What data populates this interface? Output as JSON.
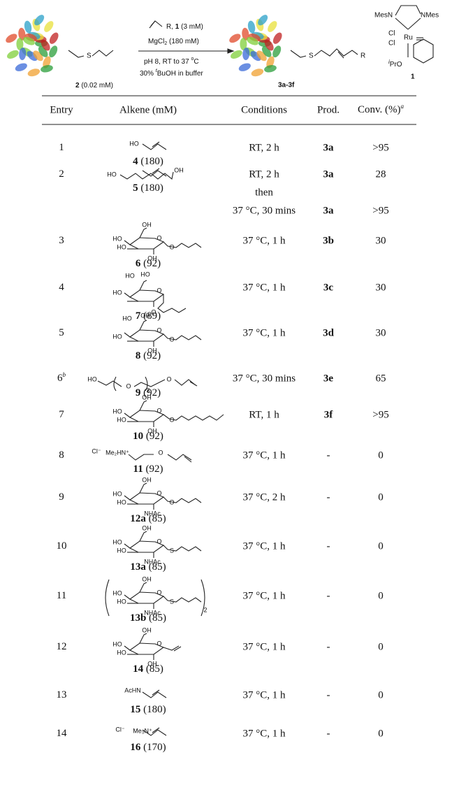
{
  "scheme": {
    "substrate_sulfur": "S",
    "substrate_label": "2",
    "substrate_conc": " (0.02 mM)",
    "reagent_r": "R, ",
    "reagent_cat": "1",
    "reagent_cat_conc": " (3 mM)",
    "mgcl": "MgCl",
    "mgcl_sub": "2",
    "mgcl_conc": " (180 mM)",
    "ph": "pH 8, RT to 37 ",
    "ph_deg": "o",
    "ph_c": "C",
    "tbuoh_pre": "30% ",
    "tbuoh_t": "t",
    "tbuoh": "BuOH in buffer",
    "product_sulfur": "S",
    "product_r": "R",
    "product_label": "3a-3f",
    "catalyst": {
      "mesn": "MesN",
      "nmes": "NMes",
      "cl1": "Cl",
      "ru": "Ru",
      "cl2": "Cl",
      "ipr_i": "i",
      "ipr": "PrO",
      "label": "1"
    }
  },
  "table": {
    "headers": {
      "entry": "Entry",
      "alkene": "Alkene (mM)",
      "conditions": "Conditions",
      "product": "Prod.",
      "conversion": "Conv. (%)",
      "conversion_note": "a"
    },
    "rows": [
      {
        "entry": "1",
        "compound": "4",
        "conc": " (180)",
        "labels": [
          "HO"
        ],
        "lines": [
          {
            "conditions": "RT, 2 h",
            "product": "3a",
            "conversion": ">95"
          }
        ]
      },
      {
        "entry": "2",
        "compound": "5",
        "conc": " (180)",
        "labels": [
          "HO",
          "OH"
        ],
        "lines": [
          {
            "conditions": "RT, 2 h",
            "product": "3a",
            "conversion": "28"
          },
          {
            "conditions": "then"
          },
          {
            "conditions": "37 °C, 30 mins",
            "product": "3a",
            "conversion": ">95"
          }
        ]
      },
      {
        "entry": "3",
        "compound": "6",
        "conc": " (92)",
        "labels": [
          "OH",
          "HO",
          "HO",
          "O",
          "O",
          "OH"
        ],
        "lines": [
          {
            "conditions": "37 °C, 1 h",
            "product": "3b",
            "conversion": "30"
          }
        ]
      },
      {
        "entry": "4",
        "compound": "7",
        "conc": " (89)",
        "labels": [
          "HO",
          "HO",
          "HO",
          "O",
          "O"
        ],
        "lines": [
          {
            "conditions": "37 °C, 1 h",
            "product": "3c",
            "conversion": "30"
          }
        ]
      },
      {
        "entry": "5",
        "compound": "8",
        "conc": " (92)",
        "labels": [
          "HO",
          "OH",
          "HO",
          "O",
          "O",
          "OH"
        ],
        "lines": [
          {
            "conditions": "37 °C, 1 h",
            "product": "3d",
            "conversion": "30"
          }
        ]
      },
      {
        "entry": "6",
        "entry_note": "b",
        "compound": "9",
        "conc": " (92)",
        "labels": [
          "HO",
          "O",
          "3",
          "O"
        ],
        "lines": [
          {
            "conditions": "37 °C, 30 mins",
            "product": "3e",
            "conversion": "65"
          }
        ]
      },
      {
        "entry": "7",
        "compound": "10",
        "conc": " (92)",
        "labels": [
          "OH",
          "HO",
          "HO",
          "O",
          "O",
          "OH"
        ],
        "lines": [
          {
            "conditions": "RT, 1 h",
            "product": "3f",
            "conversion": ">95"
          }
        ]
      },
      {
        "entry": "8",
        "compound": "11",
        "conc": " (92)",
        "labels": [
          "Cl⁻",
          "Me₂HN⁺",
          "O"
        ],
        "lines": [
          {
            "conditions": "37 °C, 1 h",
            "product": "-",
            "conversion": "0"
          }
        ]
      },
      {
        "entry": "9",
        "compound": "12a",
        "conc": " (85)",
        "labels": [
          "OH",
          "HO",
          "HO",
          "O",
          "O",
          "NHAc"
        ],
        "lines": [
          {
            "conditions": "37 °C, 2 h",
            "product": "-",
            "conversion": "0"
          }
        ]
      },
      {
        "entry": "10",
        "compound": "13a",
        "conc": " (85)",
        "labels": [
          "OH",
          "HO",
          "HO",
          "O",
          "S",
          "NHAc"
        ],
        "lines": [
          {
            "conditions": "37 °C, 1 h",
            "product": "-",
            "conversion": "0"
          }
        ]
      },
      {
        "entry": "11",
        "compound": "13b",
        "conc": " (85)",
        "labels": [
          "OH",
          "HO",
          "HO",
          "O",
          "S",
          "NHAc",
          "2"
        ],
        "lines": [
          {
            "conditions": "37 °C, 1 h",
            "product": "-",
            "conversion": "0"
          }
        ]
      },
      {
        "entry": "12",
        "compound": "14",
        "conc": " (85)",
        "labels": [
          "OH",
          "HO",
          "HO",
          "O",
          "OH"
        ],
        "lines": [
          {
            "conditions": "37 °C, 1 h",
            "product": "-",
            "conversion": "0"
          }
        ]
      },
      {
        "entry": "13",
        "compound": "15",
        "conc": " (180)",
        "labels": [
          "AcHN"
        ],
        "lines": [
          {
            "conditions": "37 °C, 1 h",
            "product": "-",
            "conversion": "0"
          }
        ]
      },
      {
        "entry": "14",
        "compound": "16",
        "conc": " (170)",
        "labels": [
          "Cl⁻",
          "Me₃N⁺"
        ],
        "lines": [
          {
            "conditions": "37 °C, 1 h",
            "product": "-",
            "conversion": "0"
          }
        ]
      }
    ]
  }
}
